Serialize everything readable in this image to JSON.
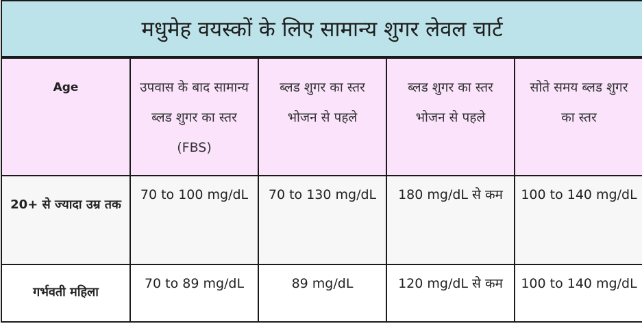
{
  "title": "मधुमेह वयस्कों के लिए सामान्य शुगर लेवल चार्ट",
  "headers": [
    "Age",
    "उपवास के बाद सामान्य ब्लड शुगर का स्तर (FBS)",
    "ब्लड शुगर का स्तर भोजन से पहले",
    "ब्लड शुगर का स्तर भोजन से पहले",
    "सोते समय ब्लड शुगर का स्तर"
  ],
  "rows": [
    {
      "label": "20+ से ज्यादा उम्र तक",
      "values": [
        "70 to 100 mg/dL",
        "70 to 130 mg/dL",
        "180 mg/dL से कम",
        "100 to 140 mg/dL"
      ]
    },
    {
      "label": "गर्भवती महिला",
      "values": [
        "70 to 89 mg/dL",
        "89 mg/dL",
        "120 mg/dL से कम",
        "100 to 140 mg/dL"
      ]
    }
  ]
}
